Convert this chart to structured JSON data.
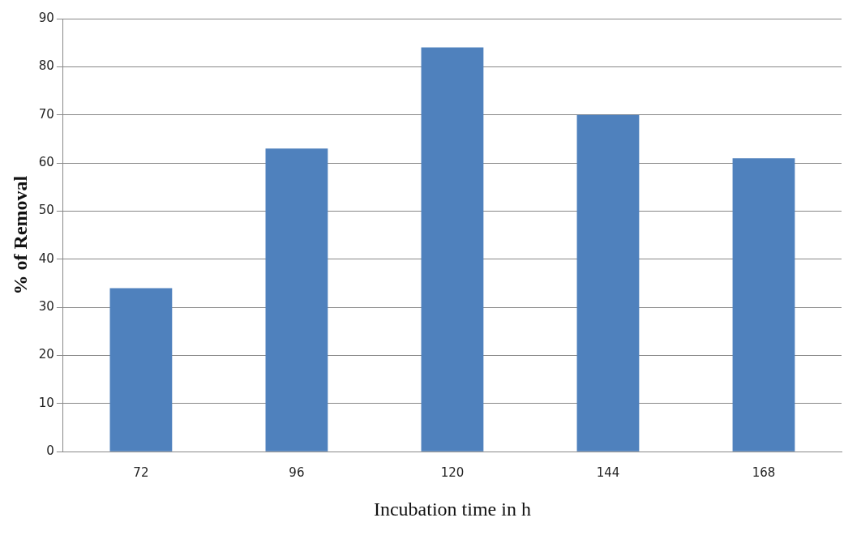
{
  "chart_data": {
    "type": "bar",
    "xlabel": "Incubation time in h",
    "ylabel": "% of Removal",
    "categories": [
      "72",
      "96",
      "120",
      "144",
      "168"
    ],
    "values": [
      34,
      63,
      84,
      70,
      61
    ],
    "color": "#4f81bd",
    "ylim": [
      0,
      90
    ],
    "yticks": [
      0,
      10,
      20,
      30,
      40,
      50,
      60,
      70,
      80,
      90
    ],
    "grid": "y",
    "legend": false
  }
}
